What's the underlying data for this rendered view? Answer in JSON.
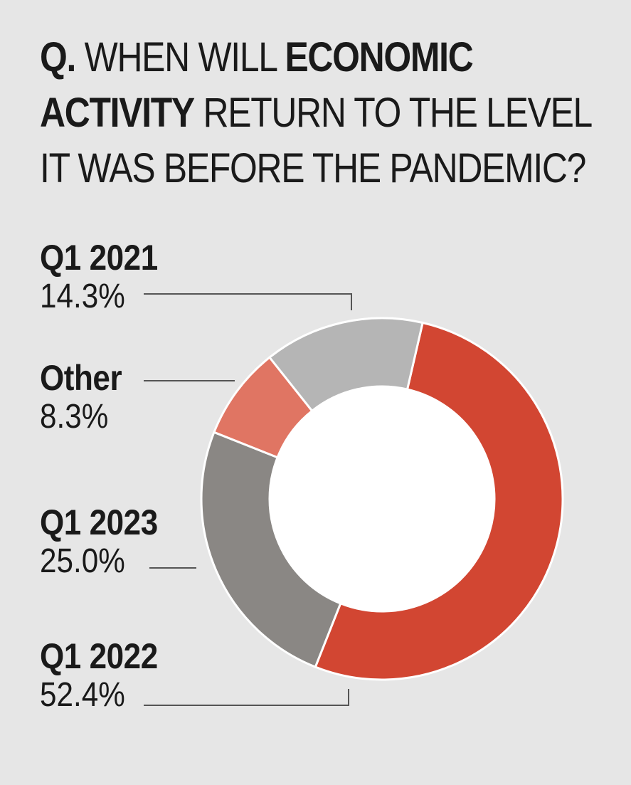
{
  "title": {
    "line1_prefix": "Q.",
    "line1_regular": "WHEN WILL",
    "line1_bold": "ECONOMIC",
    "line2_bold": "ACTIVITY",
    "line2_regular": "RETURN TO THE LEVEL",
    "line3": "IT WAS BEFORE THE PANDEMIC?"
  },
  "chart_data": {
    "type": "pie",
    "variant": "donut",
    "title": "Q. WHEN WILL ECONOMIC ACTIVITY RETURN TO THE LEVEL IT WAS BEFORE THE PANDEMIC?",
    "categories": [
      "Q1 2022",
      "Q1 2023",
      "Other",
      "Q1 2021"
    ],
    "values": [
      52.4,
      25.0,
      8.3,
      14.3
    ],
    "value_labels": [
      "52.4%",
      "25.0%",
      "8.3%",
      "14.3%"
    ],
    "colors": [
      "#d24632",
      "#8a8784",
      "#e07563",
      "#b5b5b5"
    ],
    "order": "clockwise from top, starting with Q1 2022"
  },
  "labels": {
    "q1_2021": {
      "name": "Q1 2021",
      "pct": "14.3%"
    },
    "other": {
      "name": "Other",
      "pct": "8.3%"
    },
    "q1_2023": {
      "name": "Q1 2023",
      "pct": "25.0%"
    },
    "q1_2022": {
      "name": "Q1 2022",
      "pct": "52.4%"
    }
  },
  "colors": {
    "background": "#e6e6e6",
    "text": "#1a1a1a",
    "leader_line": "#555555",
    "donut_hole": "#ffffff"
  }
}
